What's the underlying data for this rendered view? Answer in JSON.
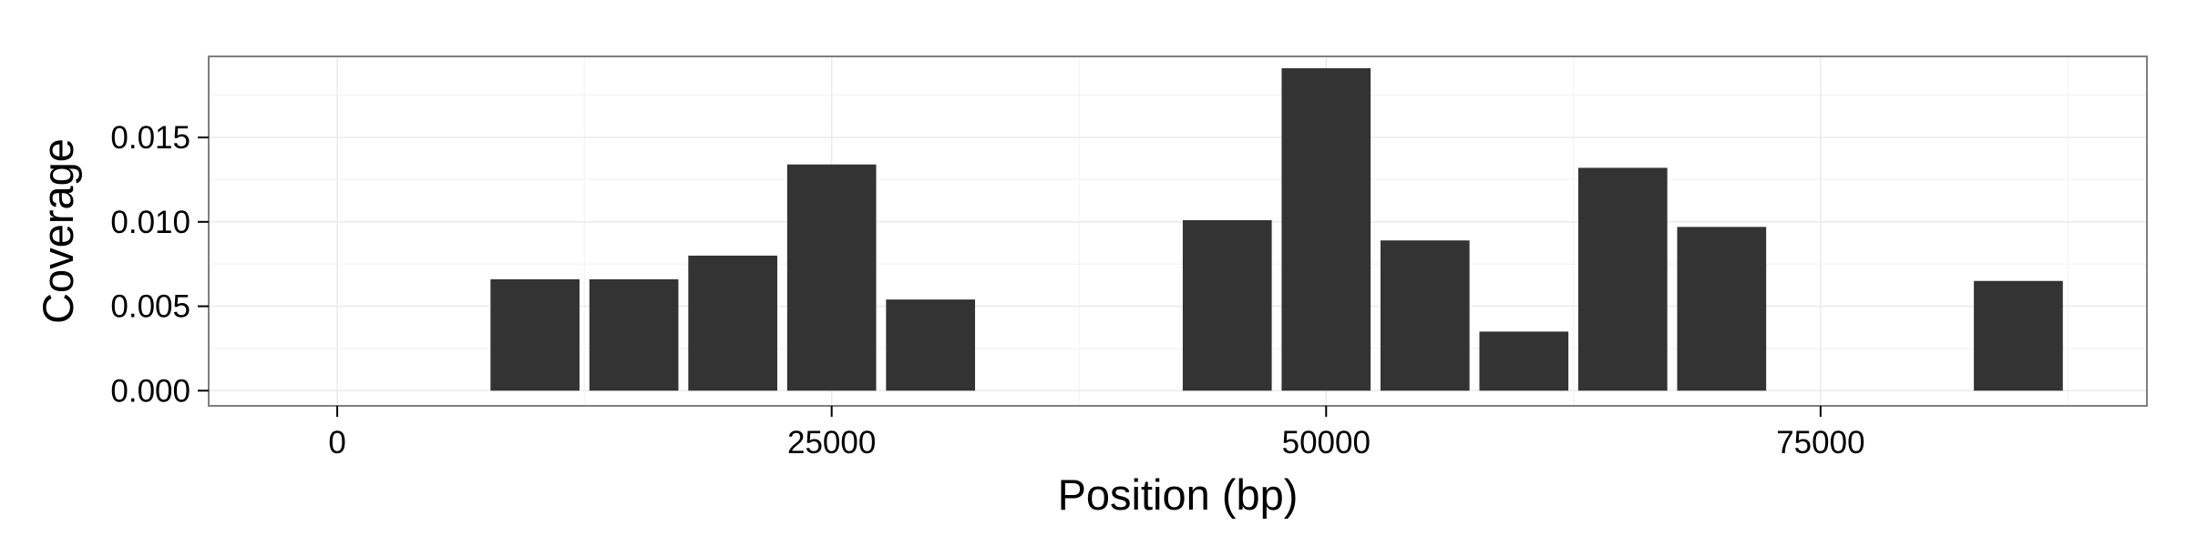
{
  "chart_data": {
    "type": "bar",
    "xlabel": "Position (bp)",
    "ylabel": "Coverage",
    "xlim": [
      -6500,
      91500
    ],
    "ylim": [
      -0.0009,
      0.0198
    ],
    "bin_width": 4500,
    "x_ticks": [
      0,
      25000,
      50000,
      75000
    ],
    "x_tick_labels": [
      "0",
      "25000",
      "50000",
      "75000"
    ],
    "y_ticks": [
      0.0,
      0.005,
      0.01,
      0.015
    ],
    "y_tick_labels": [
      "0.000",
      "0.005",
      "0.010",
      "0.015"
    ],
    "grid": true,
    "legend": "none",
    "bars": [
      {
        "x": 10000,
        "y": 0.0066
      },
      {
        "x": 15000,
        "y": 0.0066
      },
      {
        "x": 20000,
        "y": 0.008
      },
      {
        "x": 25000,
        "y": 0.0134
      },
      {
        "x": 30000,
        "y": 0.0054
      },
      {
        "x": 45000,
        "y": 0.0101
      },
      {
        "x": 50000,
        "y": 0.0191
      },
      {
        "x": 55000,
        "y": 0.0089
      },
      {
        "x": 60000,
        "y": 0.0035
      },
      {
        "x": 65000,
        "y": 0.0132
      },
      {
        "x": 70000,
        "y": 0.0097
      },
      {
        "x": 85000,
        "y": 0.0065
      }
    ],
    "colors": {
      "bar": "#333333",
      "panel_border": "#7f7f7f",
      "grid_major": "#ebebeb",
      "grid_minor": "#f5f5f5",
      "text": "#000000"
    }
  }
}
